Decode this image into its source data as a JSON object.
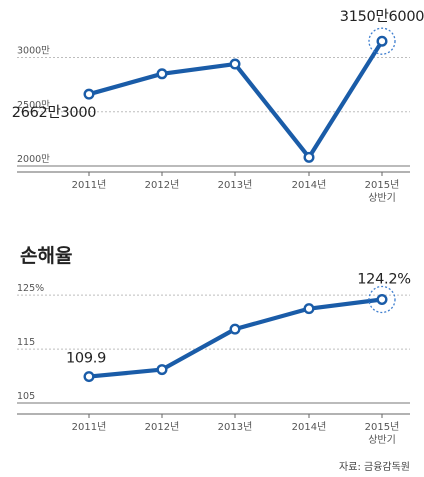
{
  "colors": {
    "line": "#1a5ca8",
    "grid": "#bdbdbd",
    "text": "#333333",
    "highlight": "#3f7fcf"
  },
  "source": "자료: 금융감독원",
  "chart_data": [
    {
      "type": "line",
      "title": "",
      "categories": [
        "2011년",
        "2012년",
        "2013년",
        "2014년",
        "2015년\n상반기"
      ],
      "yticks": [
        "2000만",
        "2500만",
        "3000만"
      ],
      "ylim": [
        2000,
        3300
      ],
      "values": [
        2662.3,
        2850,
        2940,
        2080,
        3150.6
      ],
      "labels": [
        {
          "index": 0,
          "text": "2662만3000"
        },
        {
          "index": 4,
          "text": "3150만6000"
        }
      ],
      "highlight_index": 4,
      "grid": true
    },
    {
      "type": "line",
      "title": "손해율",
      "categories": [
        "2011년",
        "2012년",
        "2013년",
        "2014년",
        "2015년\n상반기"
      ],
      "yticks": [
        "105",
        "115",
        "125%"
      ],
      "ylim": [
        105,
        128
      ],
      "values": [
        109.9,
        111.2,
        118.7,
        122.5,
        124.2
      ],
      "labels": [
        {
          "index": 0,
          "text": "109.9"
        },
        {
          "index": 4,
          "text": "124.2%"
        }
      ],
      "highlight_index": 4,
      "grid": true
    }
  ]
}
